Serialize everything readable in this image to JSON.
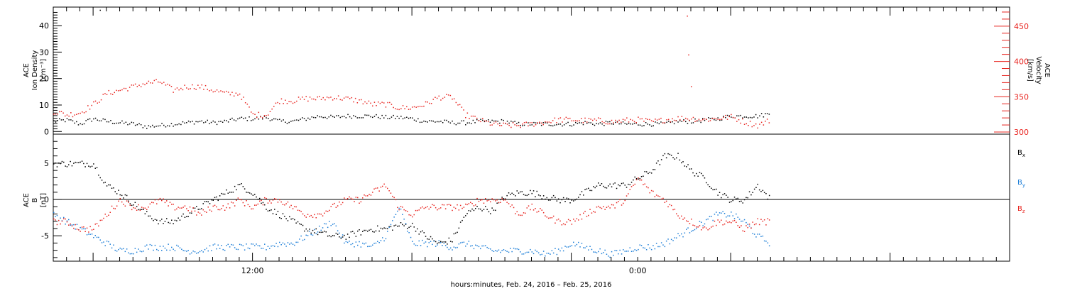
{
  "chart_data": [
    {
      "type": "scatter",
      "panel": "plasma",
      "ylabel_left": [
        "ACE",
        "Ion Density",
        "[cm⁻³]"
      ],
      "ylabel_right": [
        "ACE",
        "Velocity",
        "[km/s]"
      ],
      "left_axis": {
        "ylim": [
          -1,
          47
        ],
        "ticks": [
          "0",
          "10",
          "20",
          "30",
          "40"
        ]
      },
      "right_axis": {
        "ylim": [
          297,
          477
        ],
        "ticks": [
          "300",
          "350",
          "400",
          "450"
        ],
        "color": "#e8241f"
      },
      "series": [
        {
          "color": "#000000",
          "axis": "left",
          "points": [
            [
              0,
              4
            ],
            [
              1,
              4.5
            ],
            [
              2,
              3
            ],
            [
              3,
              5
            ],
            [
              4,
              4
            ],
            [
              5,
              3.5
            ],
            [
              6,
              3
            ],
            [
              7,
              2
            ],
            [
              8,
              2.5
            ],
            [
              9,
              3
            ],
            [
              10,
              3.5
            ],
            [
              11,
              4
            ],
            [
              12,
              3.5
            ],
            [
              13,
              4
            ],
            [
              14,
              5
            ],
            [
              15,
              5
            ],
            [
              16,
              5.5
            ],
            [
              17,
              4
            ],
            [
              18,
              4
            ],
            [
              19,
              5
            ],
            [
              20,
              6
            ],
            [
              21,
              5.5
            ],
            [
              22,
              6
            ],
            [
              23,
              6
            ],
            [
              24,
              6
            ],
            [
              25,
              5.5
            ],
            [
              26,
              5.5
            ],
            [
              27,
              5
            ],
            [
              28,
              4
            ],
            [
              29,
              4
            ],
            [
              30,
              3.5
            ],
            [
              31,
              3.5
            ],
            [
              32,
              4
            ],
            [
              33,
              4
            ],
            [
              34,
              4
            ],
            [
              35,
              3
            ],
            [
              36,
              3
            ],
            [
              37,
              3
            ],
            [
              38,
              3
            ],
            [
              39,
              3
            ],
            [
              40,
              3.5
            ],
            [
              41,
              3
            ],
            [
              42,
              3.5
            ],
            [
              43,
              3
            ],
            [
              44,
              3
            ],
            [
              45,
              3
            ],
            [
              46,
              3
            ],
            [
              47,
              4
            ],
            [
              48,
              4
            ],
            [
              49,
              4.5
            ],
            [
              50,
              5
            ],
            [
              51,
              6
            ],
            [
              52,
              6
            ],
            [
              53,
              6
            ],
            [
              54,
              7
            ]
          ]
        },
        {
          "color": "#e8241f",
          "axis": "right",
          "points": [
            [
              0,
              330
            ],
            [
              1,
              325
            ],
            [
              2,
              328
            ],
            [
              3,
              340
            ],
            [
              4,
              355
            ],
            [
              5,
              360
            ],
            [
              6,
              365
            ],
            [
              7,
              370
            ],
            [
              8,
              372
            ],
            [
              9,
              360
            ],
            [
              10,
              365
            ],
            [
              11,
              365
            ],
            [
              12,
              360
            ],
            [
              13,
              355
            ],
            [
              14,
              355
            ],
            [
              15,
              325
            ],
            [
              16,
              325
            ],
            [
              17,
              345
            ],
            [
              18,
              345
            ],
            [
              19,
              348
            ],
            [
              20,
              348
            ],
            [
              21,
              350
            ],
            [
              22,
              348
            ],
            [
              23,
              345
            ],
            [
              24,
              340
            ],
            [
              25,
              340
            ],
            [
              26,
              335
            ],
            [
              27,
              335
            ],
            [
              28,
              340
            ],
            [
              29,
              350
            ],
            [
              30,
              350
            ],
            [
              31,
              325
            ],
            [
              32,
              318
            ],
            [
              33,
              312
            ],
            [
              34,
              310
            ],
            [
              35,
              310
            ],
            [
              36,
              312
            ],
            [
              37,
              315
            ],
            [
              38,
              318
            ],
            [
              39,
              318
            ],
            [
              40,
              317
            ],
            [
              41,
              317
            ],
            [
              42,
              315
            ],
            [
              43,
              317
            ],
            [
              44,
              318
            ],
            [
              45,
              315
            ],
            [
              46,
              318
            ],
            [
              47,
              320
            ],
            [
              48,
              320
            ],
            [
              49,
              318
            ],
            [
              50,
              320
            ],
            [
              51,
              322
            ],
            [
              52,
              315
            ],
            [
              53,
              310
            ],
            [
              54,
              318
            ]
          ]
        }
      ],
      "annotations": [
        [
          3.5,
          46
        ],
        [
          47.7,
          465
        ],
        [
          47.8,
          410
        ],
        [
          48,
          365
        ]
      ]
    },
    {
      "type": "scatter",
      "panel": "magnetic-field",
      "ylabel": [
        "ACE",
        "B",
        "[nT]"
      ],
      "ylim": [
        -8.5,
        9
      ],
      "ticks": [
        "-5",
        "0",
        "5"
      ],
      "zero_line": true,
      "legend": [
        {
          "label": "Bx",
          "base": "B",
          "sub": "x",
          "color": "#000000"
        },
        {
          "label": "By",
          "base": "B",
          "sub": "y",
          "color": "#1e7fd8"
        },
        {
          "label": "Bz",
          "base": "B",
          "sub": "z",
          "color": "#e8241f"
        }
      ],
      "series": [
        {
          "color": "#000000",
          "points": [
            [
              0,
              5
            ],
            [
              1,
              5
            ],
            [
              2,
              5
            ],
            [
              3,
              5
            ],
            [
              4,
              2
            ],
            [
              5,
              1
            ],
            [
              6,
              -0.5
            ],
            [
              7,
              -2
            ],
            [
              8,
              -3
            ],
            [
              9,
              -3
            ],
            [
              10,
              -2
            ],
            [
              11,
              -1
            ],
            [
              12,
              0
            ],
            [
              13,
              1
            ],
            [
              14,
              2
            ],
            [
              15,
              1
            ],
            [
              16,
              -1
            ],
            [
              17,
              -2
            ],
            [
              18,
              -3
            ],
            [
              19,
              -4
            ],
            [
              20,
              -4.5
            ],
            [
              21,
              -5
            ],
            [
              22,
              -5
            ],
            [
              23,
              -4.5
            ],
            [
              24,
              -4
            ],
            [
              25,
              -4
            ],
            [
              26,
              -3.5
            ],
            [
              27,
              -3.5
            ],
            [
              28,
              -5
            ],
            [
              29,
              -6
            ],
            [
              30,
              -5.5
            ],
            [
              31,
              -2
            ],
            [
              32,
              -1
            ],
            [
              33,
              -1.5
            ],
            [
              34,
              0.5
            ],
            [
              35,
              1
            ],
            [
              36,
              1
            ],
            [
              37,
              0.5
            ],
            [
              38,
              0
            ],
            [
              39,
              0
            ],
            [
              40,
              1
            ],
            [
              41,
              2
            ],
            [
              42,
              2
            ],
            [
              43,
              2
            ],
            [
              44,
              3
            ],
            [
              45,
              4
            ],
            [
              46,
              6
            ],
            [
              47,
              6
            ],
            [
              48,
              4
            ],
            [
              49,
              3
            ],
            [
              50,
              1
            ],
            [
              51,
              0
            ],
            [
              52,
              0
            ],
            [
              53,
              2
            ],
            [
              54,
              0
            ]
          ]
        },
        {
          "color": "#1e7fd8",
          "points": [
            [
              0,
              -2
            ],
            [
              1,
              -3
            ],
            [
              2,
              -4
            ],
            [
              3,
              -5
            ],
            [
              4,
              -6
            ],
            [
              5,
              -7
            ],
            [
              6,
              -7
            ],
            [
              7,
              -6.5
            ],
            [
              8,
              -6.5
            ],
            [
              9,
              -6.5
            ],
            [
              10,
              -7
            ],
            [
              11,
              -7
            ],
            [
              12,
              -6.5
            ],
            [
              13,
              -6.5
            ],
            [
              14,
              -6.5
            ],
            [
              15,
              -6.5
            ],
            [
              16,
              -6.5
            ],
            [
              17,
              -6
            ],
            [
              18,
              -6
            ],
            [
              19,
              -5
            ],
            [
              20,
              -4
            ],
            [
              21,
              -3
            ],
            [
              22,
              -6
            ],
            [
              23,
              -6
            ],
            [
              24,
              -6.5
            ],
            [
              25,
              -5
            ],
            [
              26,
              -1
            ],
            [
              27,
              -6
            ],
            [
              28,
              -6
            ],
            [
              29,
              -6
            ],
            [
              30,
              -6.5
            ],
            [
              31,
              -6
            ],
            [
              32,
              -6.5
            ],
            [
              33,
              -7
            ],
            [
              34,
              -7
            ],
            [
              35,
              -7
            ],
            [
              36,
              -7
            ],
            [
              37,
              -7.5
            ],
            [
              38,
              -7
            ],
            [
              39,
              -6
            ],
            [
              40,
              -6.5
            ],
            [
              41,
              -7
            ],
            [
              42,
              -7.5
            ],
            [
              43,
              -7
            ],
            [
              44,
              -6.5
            ],
            [
              45,
              -6.5
            ],
            [
              46,
              -6
            ],
            [
              47,
              -5
            ],
            [
              48,
              -4
            ],
            [
              49,
              -3
            ],
            [
              50,
              -2
            ],
            [
              51,
              -2
            ],
            [
              52,
              -3
            ],
            [
              53,
              -5
            ],
            [
              54,
              -6
            ]
          ]
        },
        {
          "color": "#e8241f",
          "points": [
            [
              0,
              -3
            ],
            [
              1,
              -3
            ],
            [
              2,
              -4
            ],
            [
              3,
              -4
            ],
            [
              4,
              -2
            ],
            [
              5,
              0
            ],
            [
              6,
              -1
            ],
            [
              7,
              -1
            ],
            [
              8,
              0
            ],
            [
              9,
              -1
            ],
            [
              10,
              -1
            ],
            [
              11,
              -2
            ],
            [
              12,
              -1
            ],
            [
              13,
              -1
            ],
            [
              14,
              0
            ],
            [
              15,
              -1
            ],
            [
              16,
              0
            ],
            [
              17,
              0
            ],
            [
              18,
              -1
            ],
            [
              19,
              -2
            ],
            [
              20,
              -2
            ],
            [
              21,
              -1
            ],
            [
              22,
              0
            ],
            [
              23,
              0
            ],
            [
              24,
              1
            ],
            [
              25,
              2
            ],
            [
              26,
              -1
            ],
            [
              27,
              -2
            ],
            [
              28,
              -1
            ],
            [
              29,
              -1
            ],
            [
              30,
              -1
            ],
            [
              31,
              -1
            ],
            [
              32,
              0
            ],
            [
              33,
              0
            ],
            [
              34,
              0
            ],
            [
              35,
              -2
            ],
            [
              36,
              -1
            ],
            [
              37,
              -2
            ],
            [
              38,
              -3
            ],
            [
              39,
              -3
            ],
            [
              40,
              -2
            ],
            [
              41,
              -1
            ],
            [
              42,
              -1
            ],
            [
              43,
              0
            ],
            [
              44,
              3
            ],
            [
              45,
              1
            ],
            [
              46,
              0
            ],
            [
              47,
              -2
            ],
            [
              48,
              -3
            ],
            [
              49,
              -4
            ],
            [
              50,
              -3
            ],
            [
              51,
              -3
            ],
            [
              52,
              -4
            ],
            [
              53,
              -3
            ],
            [
              54,
              -3
            ]
          ]
        }
      ]
    }
  ],
  "x_axis": {
    "range_hours": [
      0,
      72
    ],
    "tick_labels": [
      {
        "label": "12:00",
        "hour": 15
      },
      {
        "label": "0:00",
        "hour": 44
      }
    ],
    "xlabel": "hours:minutes, Feb. 24, 2016 – Feb. 25, 2016"
  }
}
